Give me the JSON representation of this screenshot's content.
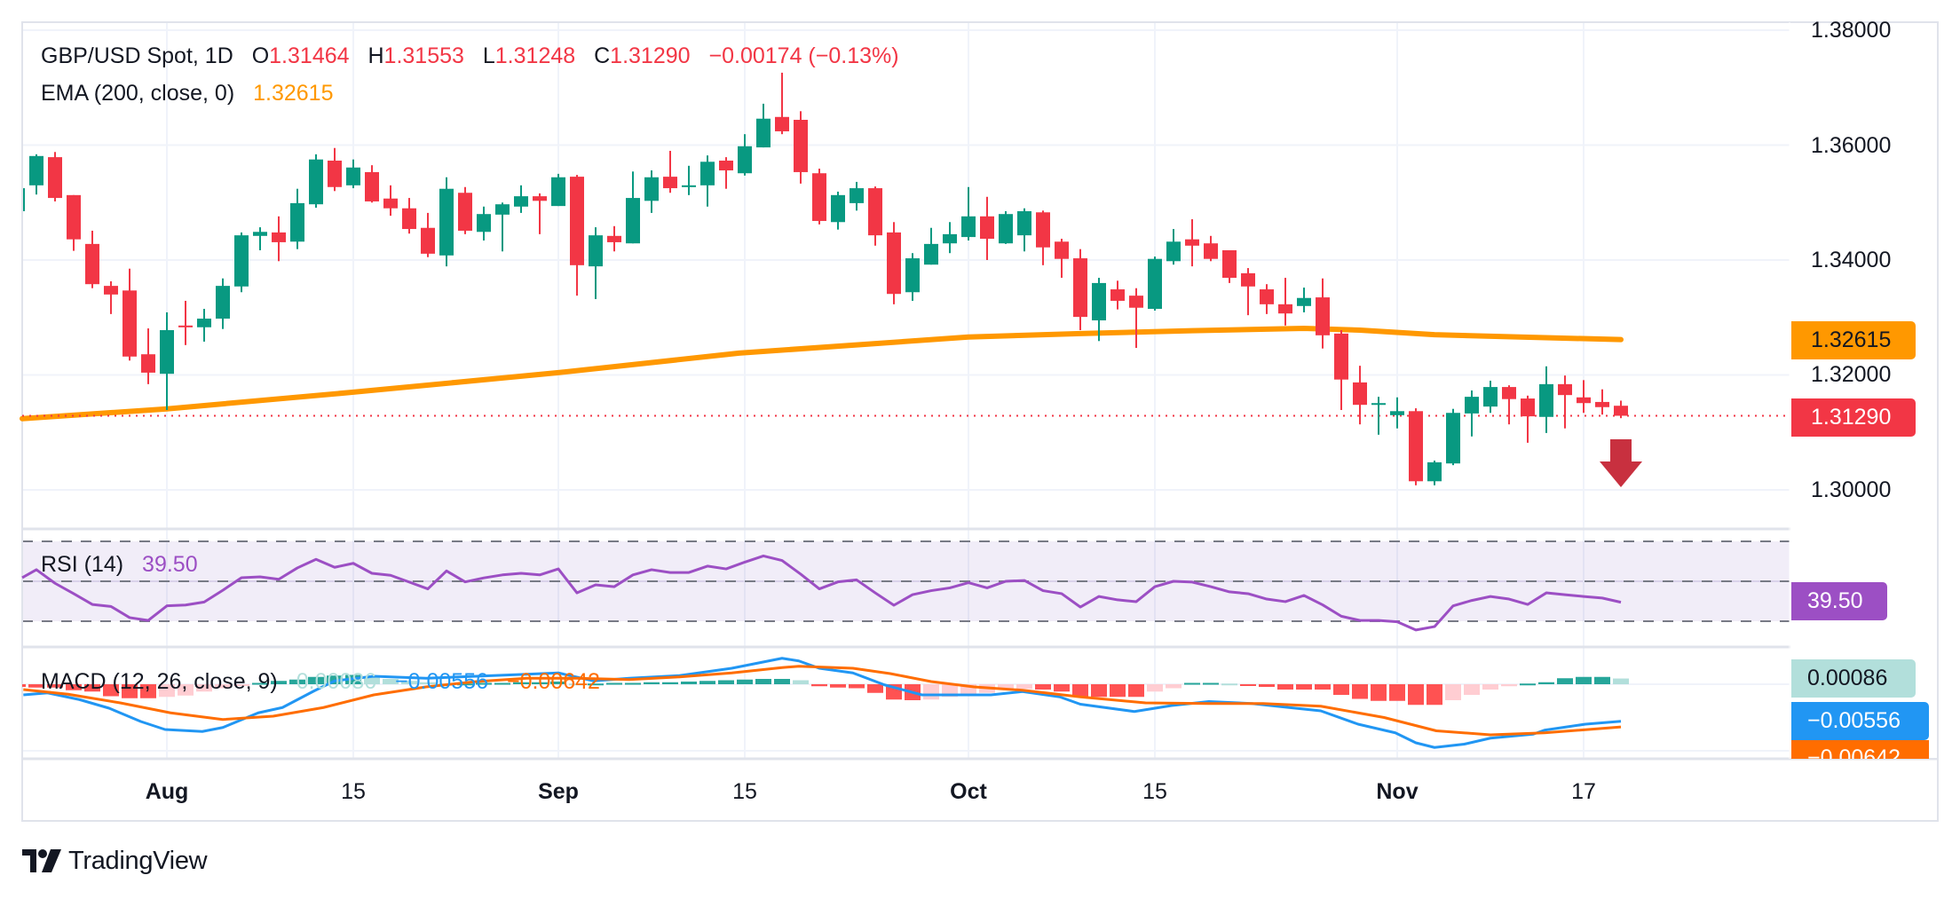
{
  "header": {
    "symbol": "GBP/USD Spot, 1D",
    "open_label": "O",
    "open": "1.31464",
    "high_label": "H",
    "high": "1.31553",
    "low_label": "L",
    "low": "1.31248",
    "close_label": "C",
    "close": "1.31290",
    "change": "−0.00174 (−0.13%)"
  },
  "ema_legend": {
    "label": "EMA (200, close, 0)",
    "value": "1.32615"
  },
  "rsi_legend": {
    "label": "RSI (14)",
    "value": "39.50"
  },
  "macd_legend": {
    "label": "MACD (12, 26, close, 9)",
    "histogram": "0.00086",
    "macd": "−0.00556",
    "signal": "−0.00642"
  },
  "price_axis": {
    "labels": [
      "1.38000",
      "1.36000",
      "1.34000",
      "1.32000",
      "1.30000"
    ],
    "ema_tag": "1.32615",
    "last_price_tag": "1.31290"
  },
  "rsi_axis": {
    "tag": "39.50"
  },
  "macd_axis": {
    "histogram_tag": "0.00086",
    "macd_tag": "−0.00556",
    "signal_tag": "−0.00642"
  },
  "x_axis": {
    "ticks": [
      {
        "label": "Aug",
        "index": 8,
        "month": true
      },
      {
        "label": "15",
        "index": 18,
        "month": false
      },
      {
        "label": "Sep",
        "index": 29,
        "month": true
      },
      {
        "label": "15",
        "index": 39,
        "month": false
      },
      {
        "label": "Oct",
        "index": 51,
        "month": true
      },
      {
        "label": "15",
        "index": 61,
        "month": false
      },
      {
        "label": "Nov",
        "index": 74,
        "month": true
      },
      {
        "label": "17",
        "index": 84,
        "month": false
      }
    ]
  },
  "branding": {
    "name": "TradingView"
  },
  "colors": {
    "up": "#089981",
    "down": "#f23645",
    "ema": "#ff9800",
    "rsi": "#9c4fc4",
    "macd": "#2196f3",
    "signal": "#ff6d00",
    "hist_up_strong": "#26a69a",
    "hist_up_weak": "#b2dfdb",
    "hist_down_strong": "#ff5252",
    "hist_down_weak": "#ffcdd2",
    "arrow": "#c8303f"
  },
  "chart_data": {
    "type": "candlestick",
    "title": "GBP/USD Spot, 1D",
    "ylim": [
      1.3,
      1.38
    ],
    "yticks": [
      1.38,
      1.36,
      1.34,
      1.32,
      1.3
    ],
    "last_price": 1.3129,
    "annotation": "down-arrow below last candle",
    "candles_ohlc": [
      [
        1.349,
        1.3525,
        1.3485,
        1.3522
      ],
      [
        1.353,
        1.3584,
        1.3514,
        1.3581
      ],
      [
        1.3579,
        1.3588,
        1.3502,
        1.3508
      ],
      [
        1.3513,
        1.3513,
        1.3416,
        1.3436
      ],
      [
        1.3428,
        1.3451,
        1.3351,
        1.3358
      ],
      [
        1.3355,
        1.3363,
        1.3306,
        1.334
      ],
      [
        1.3347,
        1.3385,
        1.3225,
        1.3232
      ],
      [
        1.3236,
        1.3281,
        1.3184,
        1.3204
      ],
      [
        1.3202,
        1.3309,
        1.3139,
        1.3278
      ],
      [
        1.3286,
        1.3329,
        1.3252,
        1.3284
      ],
      [
        1.3283,
        1.3315,
        1.3258,
        1.3298
      ],
      [
        1.3298,
        1.3368,
        1.328,
        1.3355
      ],
      [
        1.3354,
        1.3448,
        1.3344,
        1.3443
      ],
      [
        1.3442,
        1.3457,
        1.3417,
        1.3449
      ],
      [
        1.3448,
        1.3476,
        1.3398,
        1.3431
      ],
      [
        1.3432,
        1.3524,
        1.3419,
        1.3499
      ],
      [
        1.3497,
        1.3584,
        1.3491,
        1.3575
      ],
      [
        1.3573,
        1.3595,
        1.352,
        1.3527
      ],
      [
        1.353,
        1.3575,
        1.3525,
        1.3561
      ],
      [
        1.3553,
        1.3565,
        1.35,
        1.3502
      ],
      [
        1.3507,
        1.353,
        1.3477,
        1.349
      ],
      [
        1.349,
        1.3508,
        1.3446,
        1.3454
      ],
      [
        1.3456,
        1.3482,
        1.3405,
        1.3411
      ],
      [
        1.3408,
        1.3544,
        1.3389,
        1.3524
      ],
      [
        1.3517,
        1.3527,
        1.3445,
        1.3451
      ],
      [
        1.3449,
        1.3493,
        1.3434,
        1.348
      ],
      [
        1.3479,
        1.35,
        1.3415,
        1.3497
      ],
      [
        1.3493,
        1.353,
        1.3482,
        1.3511
      ],
      [
        1.3511,
        1.3516,
        1.3445,
        1.3503
      ],
      [
        1.3494,
        1.355,
        1.3494,
        1.3544
      ],
      [
        1.3545,
        1.3548,
        1.3338,
        1.3391
      ],
      [
        1.3389,
        1.3457,
        1.3332,
        1.3443
      ],
      [
        1.3442,
        1.3459,
        1.3415,
        1.3431
      ],
      [
        1.3429,
        1.3554,
        1.3429,
        1.3508
      ],
      [
        1.3503,
        1.3556,
        1.3482,
        1.3544
      ],
      [
        1.3545,
        1.359,
        1.3517,
        1.3525
      ],
      [
        1.3528,
        1.3564,
        1.3513,
        1.353
      ],
      [
        1.353,
        1.3582,
        1.3493,
        1.3571
      ],
      [
        1.3573,
        1.3579,
        1.3524,
        1.3556
      ],
      [
        1.3551,
        1.3619,
        1.3547,
        1.3598
      ],
      [
        1.3596,
        1.3672,
        1.3596,
        1.3646
      ],
      [
        1.3649,
        1.3726,
        1.3619,
        1.3624
      ],
      [
        1.3644,
        1.3659,
        1.3533,
        1.3553
      ],
      [
        1.3551,
        1.3559,
        1.3462,
        1.3468
      ],
      [
        1.3466,
        1.3519,
        1.3453,
        1.3513
      ],
      [
        1.3499,
        1.3536,
        1.3486,
        1.3525
      ],
      [
        1.3525,
        1.3528,
        1.3425,
        1.3443
      ],
      [
        1.3448,
        1.3466,
        1.3323,
        1.3341
      ],
      [
        1.3344,
        1.3412,
        1.3329,
        1.3403
      ],
      [
        1.3392,
        1.3456,
        1.3392,
        1.3428
      ],
      [
        1.3429,
        1.3466,
        1.3412,
        1.3445
      ],
      [
        1.344,
        1.3527,
        1.3434,
        1.3476
      ],
      [
        1.3476,
        1.351,
        1.34,
        1.3437
      ],
      [
        1.3429,
        1.3485,
        1.3428,
        1.348
      ],
      [
        1.3443,
        1.349,
        1.3415,
        1.3485
      ],
      [
        1.3483,
        1.3486,
        1.3391,
        1.3422
      ],
      [
        1.3432,
        1.3437,
        1.3369,
        1.3402
      ],
      [
        1.3403,
        1.3419,
        1.3278,
        1.3301
      ],
      [
        1.3295,
        1.3369,
        1.3259,
        1.336
      ],
      [
        1.3349,
        1.3364,
        1.3314,
        1.3329
      ],
      [
        1.3338,
        1.3351,
        1.3247,
        1.3317
      ],
      [
        1.3315,
        1.3406,
        1.3312,
        1.3402
      ],
      [
        1.3398,
        1.3454,
        1.3392,
        1.3432
      ],
      [
        1.3436,
        1.3471,
        1.3389,
        1.3425
      ],
      [
        1.3429,
        1.3442,
        1.3398,
        1.3402
      ],
      [
        1.3417,
        1.3417,
        1.336,
        1.3369
      ],
      [
        1.3377,
        1.3386,
        1.3304,
        1.3354
      ],
      [
        1.3349,
        1.3358,
        1.3306,
        1.3323
      ],
      [
        1.3323,
        1.3369,
        1.3286,
        1.3307
      ],
      [
        1.332,
        1.3352,
        1.3309,
        1.3334
      ],
      [
        1.3335,
        1.3368,
        1.3246,
        1.3269
      ],
      [
        1.3272,
        1.3278,
        1.3139,
        1.3192
      ],
      [
        1.3187,
        1.3216,
        1.3114,
        1.3148
      ],
      [
        1.3148,
        1.3162,
        1.3096,
        1.3151
      ],
      [
        1.313,
        1.3161,
        1.3107,
        1.3137
      ],
      [
        1.3137,
        1.3142,
        1.3008,
        1.3015
      ],
      [
        1.3015,
        1.3051,
        1.3008,
        1.3048
      ],
      [
        1.3046,
        1.3141,
        1.3043,
        1.3134
      ],
      [
        1.3133,
        1.3173,
        1.3093,
        1.3162
      ],
      [
        1.3145,
        1.319,
        1.3134,
        1.3179
      ],
      [
        1.3179,
        1.3182,
        1.3114,
        1.3158
      ],
      [
        1.3159,
        1.3164,
        1.3082,
        1.3128
      ],
      [
        1.3127,
        1.3215,
        1.3099,
        1.3184
      ],
      [
        1.3184,
        1.3199,
        1.3107,
        1.3165
      ],
      [
        1.3161,
        1.3191,
        1.3134,
        1.3151
      ],
      [
        1.3153,
        1.3175,
        1.3131,
        1.3144
      ],
      [
        1.31464,
        1.31553,
        1.31248,
        1.3129
      ]
    ],
    "ema200": [
      [
        0,
        1.3124
      ],
      [
        8,
        1.3141
      ],
      [
        18,
        1.317
      ],
      [
        29,
        1.3204
      ],
      [
        38.7,
        1.3238
      ],
      [
        51,
        1.3266
      ],
      [
        57,
        1.3272
      ],
      [
        63,
        1.3277
      ],
      [
        69,
        1.3281
      ],
      [
        72,
        1.3278
      ],
      [
        76,
        1.327
      ],
      [
        86,
        1.32615
      ]
    ],
    "rsi": {
      "period": 14,
      "levels": [
        70,
        50,
        30
      ],
      "ylim": [
        0,
        100
      ],
      "values": [
        51.8,
        55.8,
        49,
        43.8,
        38.4,
        37.4,
        31.8,
        30.4,
        37.7,
        38.1,
        39.6,
        45.5,
        51.8,
        52.2,
        51,
        56.7,
        61,
        57,
        59,
        54,
        53,
        49.6,
        46.2,
        55.2,
        49.7,
        51.7,
        53.2,
        54,
        53.2,
        56.2,
        44.2,
        48.2,
        47.3,
        53.2,
        55.8,
        54.4,
        54.4,
        57.6,
        56.2,
        59.6,
        62.7,
        60.4,
        53.6,
        46.2,
        49.7,
        50.7,
        44.2,
        38,
        43.3,
        45.3,
        46.7,
        49.3,
        46.7,
        50,
        50.4,
        45.3,
        43.8,
        37.1,
        42.4,
        40.7,
        39.8,
        47.3,
        50,
        49.6,
        47.3,
        44.7,
        43.8,
        41.1,
        39.8,
        42.9,
        38.2,
        32.5,
        30.4,
        30.4,
        29.7,
        25.6,
        27.3,
        37.7,
        40.4,
        42.4,
        41.1,
        38.4,
        44.2,
        43.3,
        42.4,
        41.6,
        39.5
      ]
    },
    "macd": {
      "params": [
        12,
        26,
        9
      ],
      "macd_line": [
        [
          0.3,
          -0.0016
        ],
        [
          1.6,
          -0.0013
        ],
        [
          3.3,
          -0.0023
        ],
        [
          4.9,
          -0.0036
        ],
        [
          6.6,
          -0.0056
        ],
        [
          7.9,
          -0.0068
        ],
        [
          9.9,
          -0.0071
        ],
        [
          11,
          -0.0065
        ],
        [
          12.9,
          -0.0043
        ],
        [
          14.2,
          -0.0035
        ],
        [
          15.9,
          -0.001
        ],
        [
          17,
          0.0005
        ],
        [
          19.1,
          0.0012
        ],
        [
          21.9,
          0.0009
        ],
        [
          24.6,
          0.0012
        ],
        [
          27.3,
          0.0015
        ],
        [
          29,
          0.0017
        ],
        [
          30.9,
          0.0005
        ],
        [
          32.8,
          0.0009
        ],
        [
          35.5,
          0.0013
        ],
        [
          38.3,
          0.0024
        ],
        [
          41,
          0.0039
        ],
        [
          41.9,
          0.0035
        ],
        [
          43,
          0.0024
        ],
        [
          44.8,
          0.0017
        ],
        [
          46.5,
          -0.0001
        ],
        [
          48.5,
          -0.0016
        ],
        [
          50.5,
          -0.0016
        ],
        [
          52.2,
          -0.0016
        ],
        [
          53.9,
          -0.0011
        ],
        [
          55.9,
          -0.0019
        ],
        [
          57,
          -0.003
        ],
        [
          59.9,
          -0.0041
        ],
        [
          61.9,
          -0.0032
        ],
        [
          63.9,
          -0.0026
        ],
        [
          66.2,
          -0.0029
        ],
        [
          68.2,
          -0.0035
        ],
        [
          69.9,
          -0.004
        ],
        [
          71.9,
          -0.006
        ],
        [
          73.9,
          -0.0073
        ],
        [
          75,
          -0.0088
        ],
        [
          76,
          -0.0095
        ],
        [
          77.6,
          -0.009
        ],
        [
          79,
          -0.0081
        ],
        [
          81.3,
          -0.0075
        ],
        [
          81.9,
          -0.0069
        ],
        [
          84.1,
          -0.006
        ],
        [
          86,
          -0.00556
        ]
      ],
      "signal_line": [
        [
          0.3,
          -0.0008
        ],
        [
          2.7,
          -0.0015
        ],
        [
          5.5,
          -0.0028
        ],
        [
          8.2,
          -0.0043
        ],
        [
          11,
          -0.0053
        ],
        [
          13.7,
          -0.0048
        ],
        [
          16.4,
          -0.0035
        ],
        [
          19.1,
          -0.0016
        ],
        [
          21.9,
          -0.0004
        ],
        [
          24.6,
          0.0004
        ],
        [
          27.3,
          0.0009
        ],
        [
          30,
          0.0009
        ],
        [
          32.8,
          0.0007
        ],
        [
          35.5,
          0.0011
        ],
        [
          38.3,
          0.0017
        ],
        [
          41,
          0.0025
        ],
        [
          41.9,
          0.0027
        ],
        [
          44.8,
          0.0024
        ],
        [
          46.8,
          0.0016
        ],
        [
          49,
          0.0004
        ],
        [
          51.3,
          -0.0004
        ],
        [
          53.9,
          -0.0009
        ],
        [
          57,
          -0.0019
        ],
        [
          60.5,
          -0.0028
        ],
        [
          63.9,
          -0.0029
        ],
        [
          66.8,
          -0.0029
        ],
        [
          69.9,
          -0.0033
        ],
        [
          73.3,
          -0.005
        ],
        [
          76.1,
          -0.007
        ],
        [
          79,
          -0.0076
        ],
        [
          81.9,
          -0.0073
        ],
        [
          86,
          -0.00642
        ]
      ],
      "histogram": [
        -0.0004,
        -0.0005,
        -0.0005,
        -0.0009,
        -0.0011,
        -0.0018,
        -0.0021,
        -0.0021,
        -0.0019,
        -0.0017,
        -0.0011,
        -0.0006,
        -0.0002,
        0.0002,
        0.0005,
        0.0007,
        0.0011,
        0.0013,
        0.0014,
        0.0012,
        0.0008,
        0.0005,
        0.0003,
        0.0001,
        0.0001,
        0.0002,
        0.0002,
        0.0003,
        0.0003,
        0.0004,
        0.0001,
        0.0001,
        0.0002,
        0.0002,
        0.0003,
        0.0003,
        0.0004,
        0.0005,
        0.0006,
        0.0007,
        0.0008,
        0.0008,
        0.0006,
        -0.0003,
        -0.0005,
        -0.0006,
        -0.0013,
        -0.0023,
        -0.0024,
        -0.0023,
        -0.0019,
        -0.0016,
        -0.0013,
        -0.0008,
        -0.0007,
        -0.0008,
        -0.0011,
        -0.0019,
        -0.0019,
        -0.0019,
        -0.0019,
        -0.0011,
        -0.0006,
        0.0002,
        0.0002,
        0.0001,
        -0.0002,
        -0.0004,
        -0.0008,
        -0.0008,
        -0.0008,
        -0.0016,
        -0.0022,
        -0.0025,
        -0.0025,
        -0.0031,
        -0.0031,
        -0.0024,
        -0.0016,
        -0.0008,
        -0.0003,
        0.0001,
        0.0003,
        0.0009,
        0.0011,
        0.0011,
        0.00086
      ]
    }
  }
}
